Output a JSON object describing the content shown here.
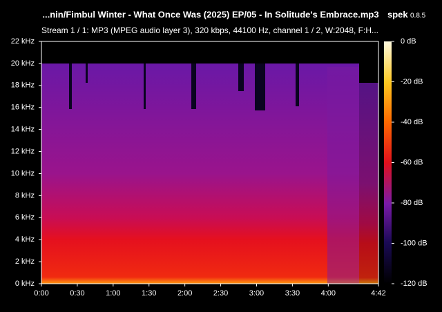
{
  "chart_data": {
    "type": "heatmap",
    "title": "...nin/Fimbul Winter - What Once Was (2025) EP/05 - In Solitude's Embrace.mp3",
    "app_name": "spek",
    "app_version": "0.8.5",
    "subtitle": "Stream 1 / 1: MP3 (MPEG audio layer 3), 320 kbps, 44100 Hz, channel 1 / 2, W:2048, F:H...",
    "xlim": [
      0,
      282
    ],
    "xticks": [
      {
        "value": 0,
        "label": "0:00"
      },
      {
        "value": 30,
        "label": "0:30"
      },
      {
        "value": 60,
        "label": "1:00"
      },
      {
        "value": 90,
        "label": "1:30"
      },
      {
        "value": 120,
        "label": "2:00"
      },
      {
        "value": 150,
        "label": "2:30"
      },
      {
        "value": 180,
        "label": "3:00"
      },
      {
        "value": 210,
        "label": "3:30"
      },
      {
        "value": 240,
        "label": "4:00"
      },
      {
        "value": 282,
        "label": "4:42"
      }
    ],
    "ylim": [
      0,
      22
    ],
    "yticks": [
      {
        "value": 0,
        "label": "0 kHz"
      },
      {
        "value": 2,
        "label": "2 kHz"
      },
      {
        "value": 4,
        "label": "4 kHz"
      },
      {
        "value": 6,
        "label": "6 kHz"
      },
      {
        "value": 8,
        "label": "8 kHz"
      },
      {
        "value": 10,
        "label": "10 kHz"
      },
      {
        "value": 12,
        "label": "12 kHz"
      },
      {
        "value": 14,
        "label": "14 kHz"
      },
      {
        "value": 16,
        "label": "16 kHz"
      },
      {
        "value": 18,
        "label": "18 kHz"
      },
      {
        "value": 20,
        "label": "20 kHz"
      },
      {
        "value": 22,
        "label": "22 kHz"
      }
    ],
    "colorbar_lim": [
      -120,
      0
    ],
    "colorbar_ticks": [
      {
        "value": -120,
        "label": "-120 dB"
      },
      {
        "value": -100,
        "label": "-100 dB"
      },
      {
        "value": -80,
        "label": "-80 dB"
      },
      {
        "value": -60,
        "label": "-60 dB"
      },
      {
        "value": -40,
        "label": "-40 dB"
      },
      {
        "value": -20,
        "label": "-20 dB"
      },
      {
        "value": 0,
        "label": "0 dB"
      }
    ]
  }
}
